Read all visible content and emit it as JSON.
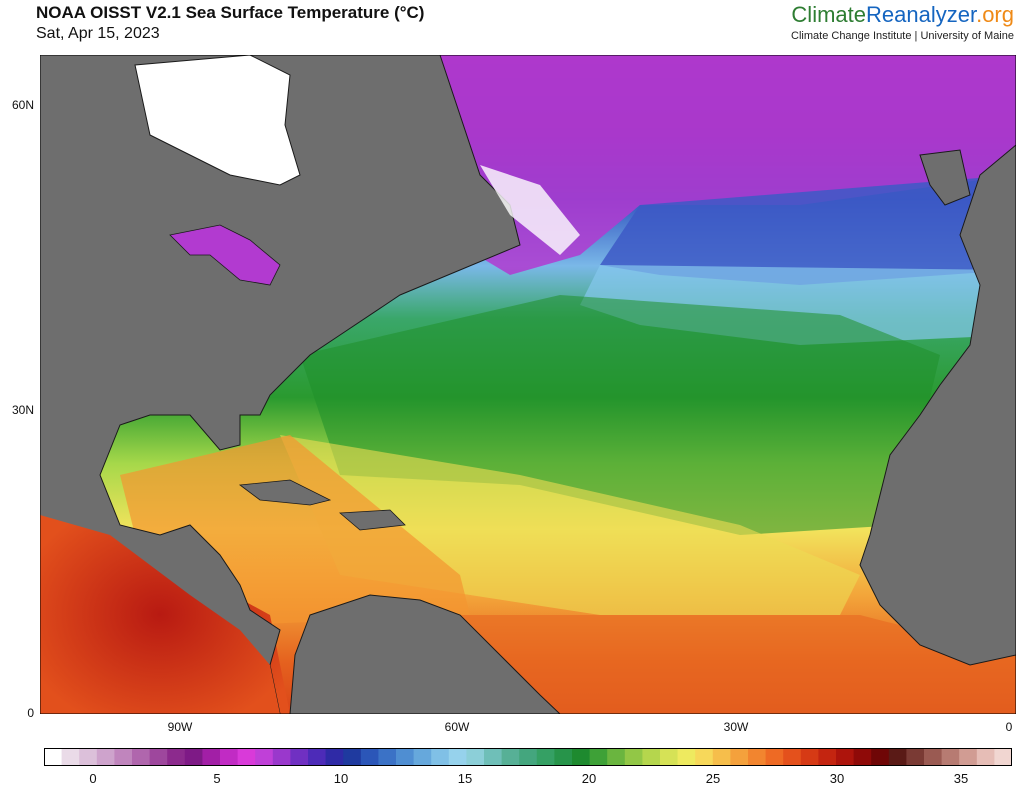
{
  "header": {
    "title": "NOAA OISST V2.1 Sea Surface Temperature (°C)",
    "date": "Sat, Apr 15, 2023"
  },
  "brand": {
    "name_part1": "Climate",
    "name_part2": "Reanalyzer",
    "name_part3": ".org",
    "subtitle": "Climate Change Institute | University of Maine",
    "colors": {
      "climate": "#2e7d32",
      "reanalyzer": "#1565c0",
      "org": "#ef8a17"
    }
  },
  "map": {
    "latitude_labels": [
      "60N",
      "30N",
      "0"
    ],
    "longitude_labels": [
      "90W",
      "60W",
      "30W",
      "0"
    ],
    "land_color": "#6e6e6e",
    "border_color": "#1a1a1a",
    "ice_color": "#ffffff"
  },
  "colorbar": {
    "tick_labels": [
      "0",
      "5",
      "10",
      "15",
      "20",
      "25",
      "30",
      "35"
    ],
    "min": -1,
    "max": 38,
    "units": "°C"
  }
}
